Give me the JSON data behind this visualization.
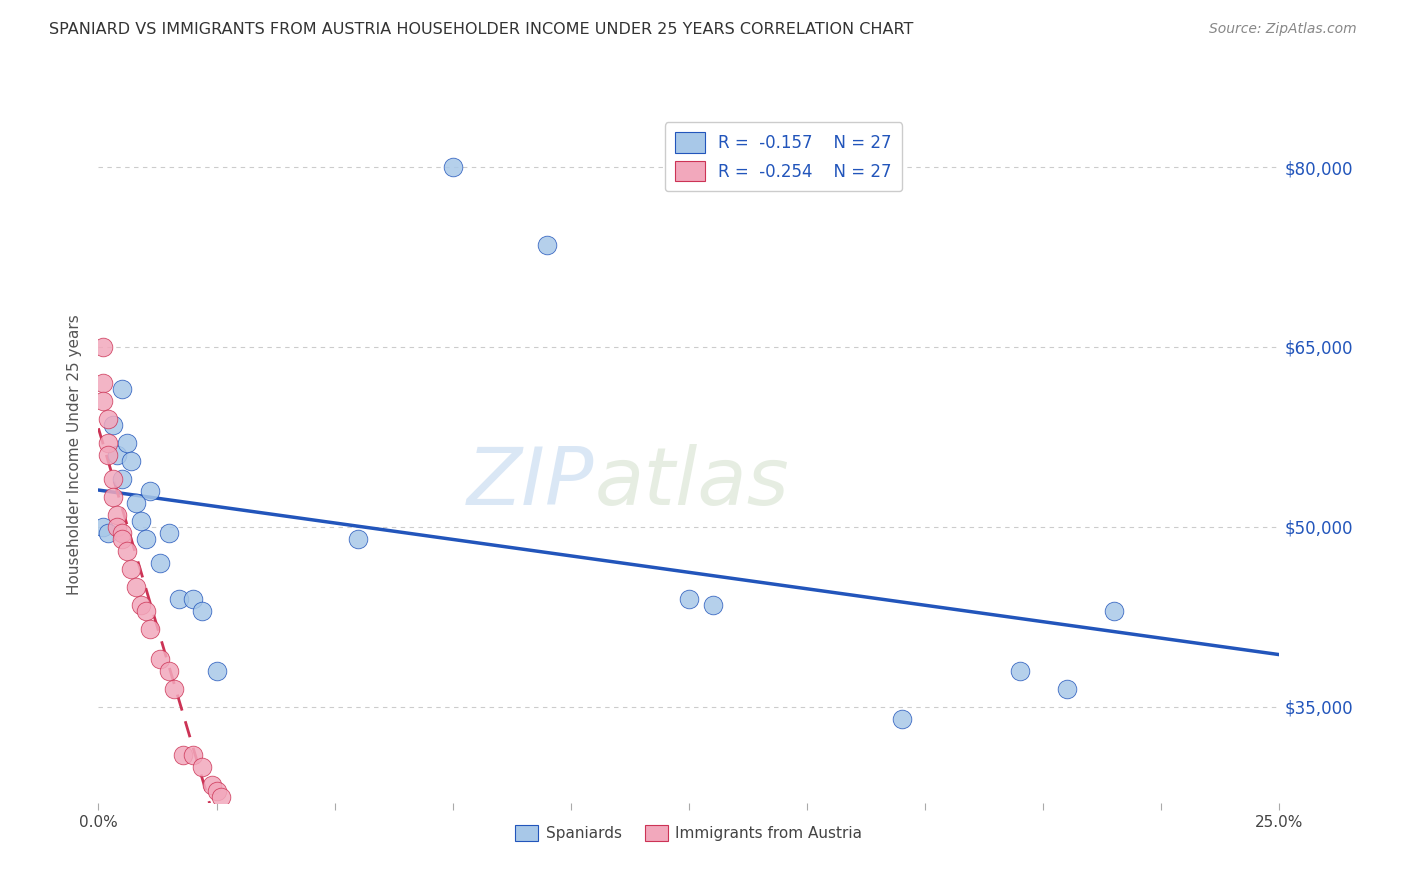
{
  "title": "SPANIARD VS IMMIGRANTS FROM AUSTRIA HOUSEHOLDER INCOME UNDER 25 YEARS CORRELATION CHART",
  "source": "Source: ZipAtlas.com",
  "ylabel": "Householder Income Under 25 years",
  "legend_label1": "Spaniards",
  "legend_label2": "Immigrants from Austria",
  "r1": -0.157,
  "n1": 27,
  "r2": -0.254,
  "n2": 27,
  "xlim": [
    0.0,
    0.25
  ],
  "ylim": [
    27000,
    85000
  ],
  "yticks": [
    35000,
    50000,
    65000,
    80000
  ],
  "ytick_labels": [
    "$35,000",
    "$50,000",
    "$65,000",
    "$80,000"
  ],
  "color_blue": "#A8C8E8",
  "color_pink": "#F2A8BC",
  "color_blue_line": "#2255BB",
  "color_pink_line": "#CC3355",
  "color_grid": "#CCCCCC",
  "watermark_zip": "ZIP",
  "watermark_atlas": "atlas",
  "sp_x": [
    0.001,
    0.002,
    0.003,
    0.004,
    0.005,
    0.005,
    0.006,
    0.007,
    0.008,
    0.009,
    0.01,
    0.011,
    0.013,
    0.015,
    0.017,
    0.02,
    0.022,
    0.025,
    0.055,
    0.075,
    0.095,
    0.125,
    0.13,
    0.17,
    0.195,
    0.205,
    0.215
  ],
  "sp_y": [
    50000,
    49500,
    58500,
    56000,
    54000,
    61500,
    57000,
    55500,
    52000,
    50500,
    49000,
    53000,
    47000,
    49500,
    44000,
    44000,
    43000,
    38000,
    49000,
    80000,
    73500,
    44000,
    43500,
    34000,
    38000,
    36500,
    43000
  ],
  "au_x": [
    0.001,
    0.001,
    0.001,
    0.002,
    0.002,
    0.002,
    0.003,
    0.003,
    0.004,
    0.004,
    0.005,
    0.005,
    0.006,
    0.007,
    0.008,
    0.009,
    0.01,
    0.011,
    0.013,
    0.015,
    0.016,
    0.018,
    0.02,
    0.022,
    0.024,
    0.025,
    0.026
  ],
  "au_y": [
    65000,
    62000,
    60500,
    59000,
    57000,
    56000,
    54000,
    52500,
    51000,
    50000,
    49500,
    49000,
    48000,
    46500,
    45000,
    43500,
    43000,
    41500,
    39000,
    38000,
    36500,
    31000,
    31000,
    30000,
    28500,
    28000,
    27500
  ]
}
